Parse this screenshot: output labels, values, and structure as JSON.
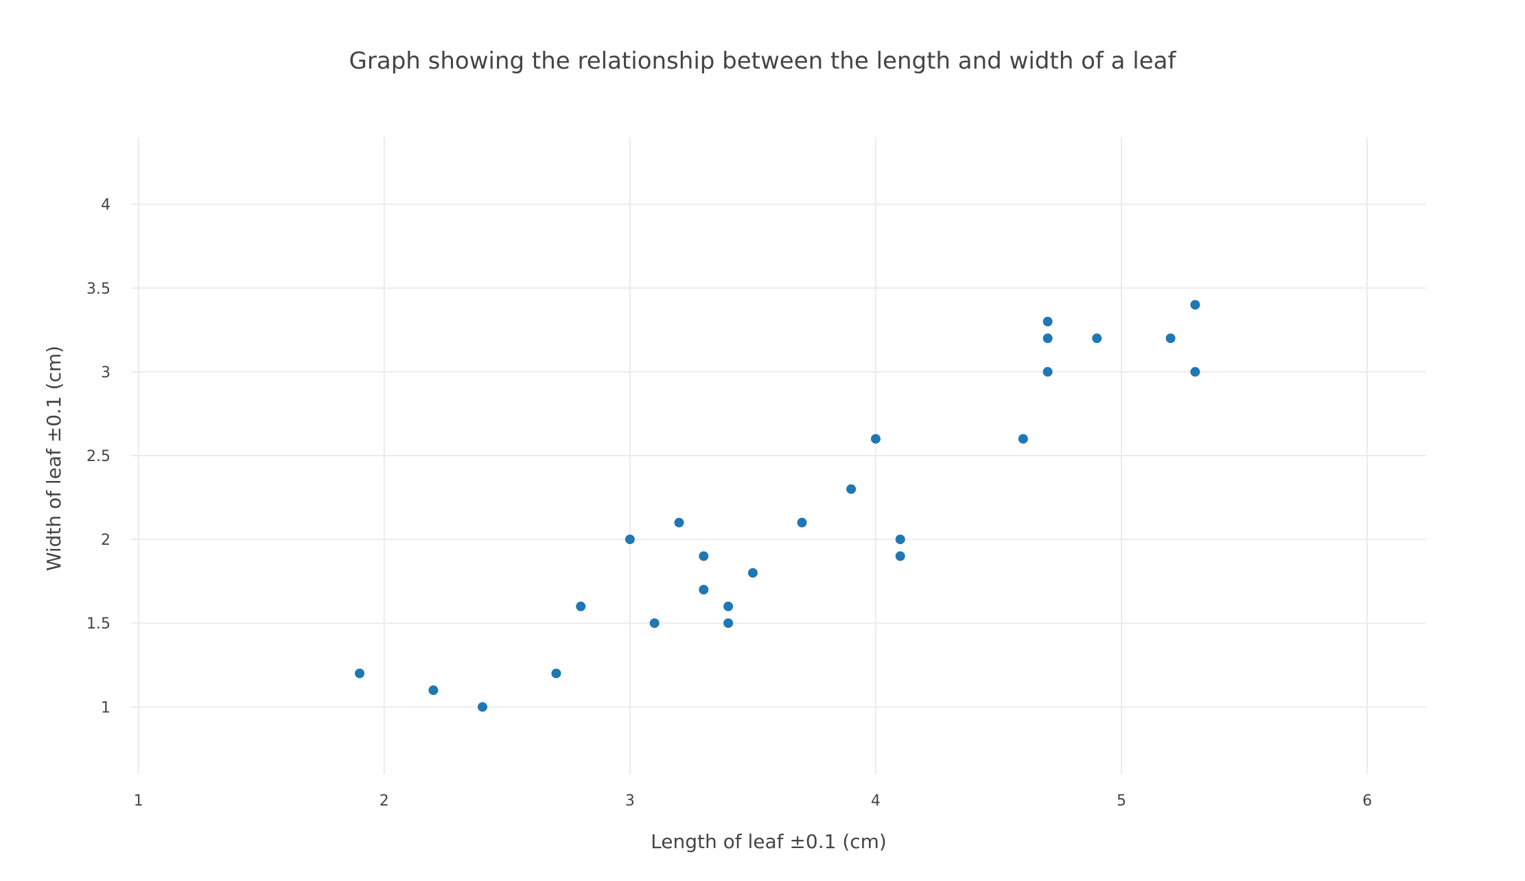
{
  "chart_data": {
    "type": "scatter",
    "title": "Graph showing the relationship between the length and width of a leaf",
    "xlabel": "Length of leaf ±0.1 (cm)",
    "ylabel": "Width of leaf ±0.1 (cm)",
    "xlim": [
      0.97,
      6.24
    ],
    "ylim": [
      0.6,
      4.4
    ],
    "x_ticks": [
      1,
      2,
      3,
      4,
      5,
      6
    ],
    "y_ticks": [
      1,
      1.5,
      2,
      2.5,
      3,
      3.5,
      4
    ],
    "x_tick_labels": [
      "1",
      "2",
      "3",
      "4",
      "5",
      "6"
    ],
    "y_tick_labels": [
      "1",
      "1.5",
      "2",
      "2.5",
      "3",
      "3.5",
      "4"
    ],
    "grid": true,
    "legend": "none",
    "marker_color": "#1f77b4",
    "points": [
      {
        "x": 1.9,
        "y": 1.2
      },
      {
        "x": 2.2,
        "y": 1.1
      },
      {
        "x": 2.4,
        "y": 1.0
      },
      {
        "x": 2.7,
        "y": 1.2
      },
      {
        "x": 2.8,
        "y": 1.6
      },
      {
        "x": 3.0,
        "y": 2.0
      },
      {
        "x": 3.1,
        "y": 1.5
      },
      {
        "x": 3.2,
        "y": 2.1
      },
      {
        "x": 3.3,
        "y": 1.9
      },
      {
        "x": 3.3,
        "y": 1.7
      },
      {
        "x": 3.4,
        "y": 1.6
      },
      {
        "x": 3.4,
        "y": 1.5
      },
      {
        "x": 3.5,
        "y": 1.8
      },
      {
        "x": 3.7,
        "y": 2.1
      },
      {
        "x": 3.9,
        "y": 2.3
      },
      {
        "x": 4.0,
        "y": 2.6
      },
      {
        "x": 4.1,
        "y": 2.0
      },
      {
        "x": 4.1,
        "y": 1.9
      },
      {
        "x": 4.6,
        "y": 2.6
      },
      {
        "x": 4.7,
        "y": 3.3
      },
      {
        "x": 4.7,
        "y": 3.2
      },
      {
        "x": 4.7,
        "y": 3.0
      },
      {
        "x": 4.9,
        "y": 3.2
      },
      {
        "x": 5.2,
        "y": 3.2
      },
      {
        "x": 5.3,
        "y": 3.4
      },
      {
        "x": 5.3,
        "y": 3.0
      }
    ]
  }
}
